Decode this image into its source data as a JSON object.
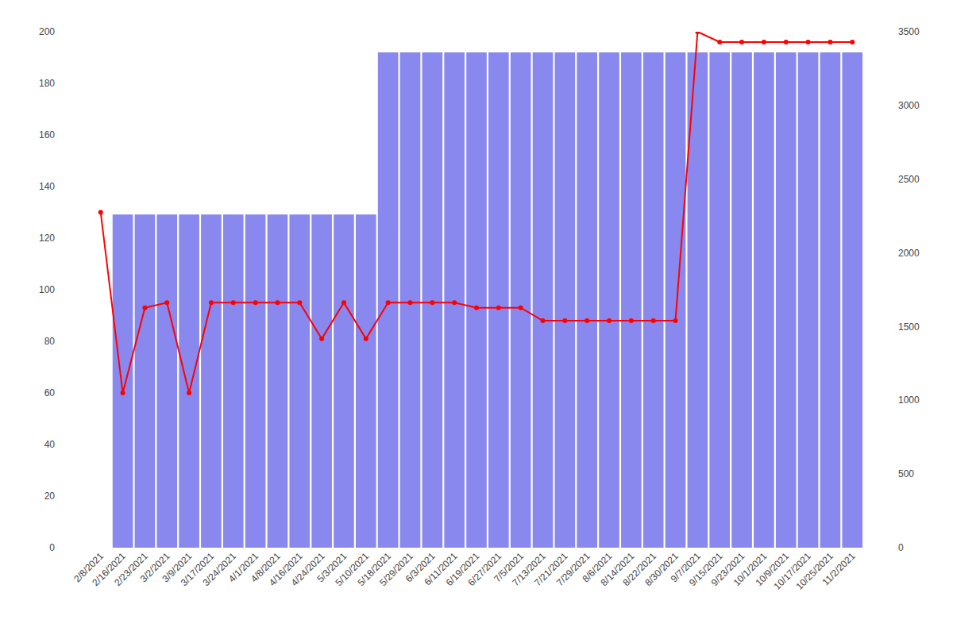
{
  "chart_data": {
    "type": "combo",
    "categories": [
      "2/8/2021",
      "2/16/2021",
      "2/23/2021",
      "3/2/2021",
      "3/9/2021",
      "3/17/2021",
      "3/24/2021",
      "4/1/2021",
      "4/8/2021",
      "4/16/2021",
      "4/24/2021",
      "5/3/2021",
      "5/10/2021",
      "5/18/2021",
      "5/29/2021",
      "6/3/2021",
      "6/11/2021",
      "6/19/2021",
      "6/27/2021",
      "7/5/2021",
      "7/13/2021",
      "7/21/2021",
      "7/29/2021",
      "8/6/2021",
      "8/14/2021",
      "8/22/2021",
      "8/30/2021",
      "9/7/2021",
      "9/15/2021",
      "9/23/2021",
      "10/1/2021",
      "10/9/2021",
      "10/17/2021",
      "10/25/2021",
      "11/2/2021"
    ],
    "series": [
      {
        "type": "bar",
        "axis": "y2",
        "color": "#8888ee",
        "values": [
          0,
          2260,
          2260,
          2260,
          2260,
          2260,
          2260,
          2260,
          2260,
          2260,
          2260,
          2260,
          2260,
          3360,
          3360,
          3360,
          3360,
          3360,
          3360,
          3360,
          3360,
          3360,
          3360,
          3360,
          3360,
          3360,
          3360,
          3360,
          3360,
          3360,
          3360,
          3360,
          3360,
          3360,
          3360
        ]
      },
      {
        "type": "line",
        "color": "#ff0000",
        "marker": "circle",
        "values": [
          130,
          60,
          93,
          95,
          60,
          95,
          95,
          95,
          95,
          95,
          81,
          95,
          81,
          95,
          95,
          95,
          95,
          93,
          93,
          93,
          88,
          88,
          88,
          88,
          88,
          88,
          88,
          200,
          196,
          196,
          196,
          196,
          196,
          196,
          196
        ]
      }
    ],
    "ylim": [
      0,
      200
    ],
    "yticks": [
      0,
      20,
      40,
      60,
      80,
      100,
      120,
      140,
      160,
      180,
      200
    ],
    "y2lim": [
      0,
      3500
    ],
    "y2ticks": [
      0,
      500,
      1000,
      1500,
      2000,
      2500,
      3000,
      3500
    ],
    "grid": false
  }
}
